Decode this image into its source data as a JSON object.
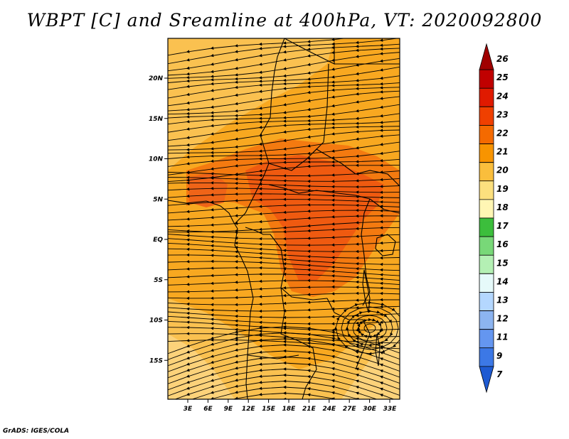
{
  "title": "WBPT [C] and Sreamline at 400hPa, VT: 2020092800",
  "footer": "GrADS: IGES/COLA",
  "map": {
    "lat_labels": [
      "20N",
      "15N",
      "10N",
      "5N",
      "EQ",
      "5S",
      "10S",
      "15S"
    ],
    "lon_labels": [
      "3E",
      "6E",
      "9E",
      "12E",
      "15E",
      "18E",
      "21E",
      "24E",
      "27E",
      "30E",
      "33E"
    ]
  },
  "colorbar": {
    "levels": [
      {
        "label": "26",
        "color": "#a00000"
      },
      {
        "label": "25",
        "color": "#c00000"
      },
      {
        "label": "24",
        "color": "#e01a00"
      },
      {
        "label": "23",
        "color": "#f04000"
      },
      {
        "label": "22",
        "color": "#f46a00"
      },
      {
        "label": "21",
        "color": "#f89400"
      },
      {
        "label": "20",
        "color": "#fabe3c"
      },
      {
        "label": "19",
        "color": "#fce07e"
      },
      {
        "label": "18",
        "color": "#fff6b4"
      },
      {
        "label": "17",
        "color": "#3cbe3c"
      },
      {
        "label": "16",
        "color": "#78d878"
      },
      {
        "label": "15",
        "color": "#b4f0b4"
      },
      {
        "label": "14",
        "color": "#e6fafa"
      },
      {
        "label": "13",
        "color": "#b4d7ff"
      },
      {
        "label": "12",
        "color": "#8cb4f0"
      },
      {
        "label": "11",
        "color": "#6496f0"
      },
      {
        "label": "9",
        "color": "#3c78e6"
      },
      {
        "label": "7",
        "color": "#1e5ad2"
      }
    ]
  }
}
